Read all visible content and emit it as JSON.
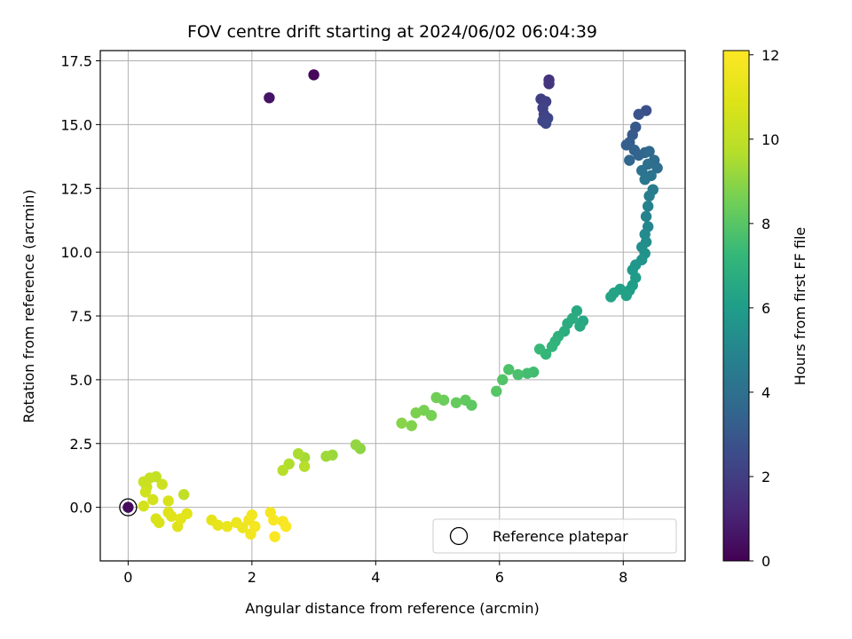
{
  "chart_data": {
    "type": "scatter",
    "title": "FOV centre drift starting at 2024/06/02 06:04:39",
    "xlabel": "Angular distance from reference (arcmin)",
    "ylabel": "Rotation from reference (arcmin)",
    "xlim": [
      -0.45,
      9.0
    ],
    "ylim": [
      -2.1,
      17.9
    ],
    "xticks": [
      0,
      2,
      4,
      6,
      8
    ],
    "xtick_labels": [
      "0",
      "2",
      "4",
      "6",
      "8"
    ],
    "yticks": [
      0.0,
      2.5,
      5.0,
      7.5,
      10.0,
      12.5,
      15.0,
      17.5
    ],
    "ytick_labels": [
      "0.0",
      "2.5",
      "5.0",
      "7.5",
      "10.0",
      "12.5",
      "15.0",
      "17.5"
    ],
    "grid": true,
    "colormap": "viridis",
    "colorbar": {
      "label": "Hours from first FF file",
      "range": [
        0,
        12.1
      ],
      "ticks": [
        0,
        2,
        4,
        6,
        8,
        10,
        12
      ],
      "tick_labels": [
        "0",
        "2",
        "4",
        "6",
        "8",
        "10",
        "12"
      ]
    },
    "legend": {
      "position": "lower-right",
      "entries": [
        "Reference platepar"
      ]
    },
    "reference_point": {
      "x": 0,
      "y": 0,
      "label": "Reference platepar"
    },
    "series": [
      {
        "points": [
          [
            0.0,
            0.0,
            0.3
          ],
          [
            3.0,
            16.95,
            0.2
          ],
          [
            2.28,
            16.05,
            0.6
          ],
          [
            6.8,
            16.75,
            1.6
          ],
          [
            6.8,
            16.6,
            1.7
          ],
          [
            6.67,
            16.0,
            2.0
          ],
          [
            6.75,
            15.9,
            2.1
          ],
          [
            6.7,
            15.65,
            2.2
          ],
          [
            6.72,
            15.4,
            2.2
          ],
          [
            6.7,
            15.15,
            2.3
          ],
          [
            6.78,
            15.25,
            2.3
          ],
          [
            6.75,
            15.05,
            2.4
          ],
          [
            8.37,
            15.55,
            2.7
          ],
          [
            8.25,
            15.4,
            2.8
          ],
          [
            8.2,
            14.9,
            3.0
          ],
          [
            8.15,
            14.6,
            3.1
          ],
          [
            8.1,
            14.3,
            3.2
          ],
          [
            8.05,
            14.2,
            3.3
          ],
          [
            8.18,
            14.0,
            3.4
          ],
          [
            8.25,
            13.8,
            3.5
          ],
          [
            8.1,
            13.6,
            3.6
          ],
          [
            8.35,
            13.9,
            3.6
          ],
          [
            8.42,
            13.95,
            3.7
          ],
          [
            8.5,
            13.6,
            3.8
          ],
          [
            8.55,
            13.3,
            3.9
          ],
          [
            8.4,
            13.45,
            4.0
          ],
          [
            8.3,
            13.2,
            4.1
          ],
          [
            8.45,
            13.0,
            4.2
          ],
          [
            8.35,
            12.85,
            4.3
          ],
          [
            8.48,
            12.45,
            4.5
          ],
          [
            8.42,
            12.2,
            4.6
          ],
          [
            8.4,
            11.8,
            4.8
          ],
          [
            8.37,
            11.4,
            4.9
          ],
          [
            8.4,
            11.0,
            5.0
          ],
          [
            8.35,
            10.7,
            5.2
          ],
          [
            8.37,
            10.4,
            5.3
          ],
          [
            8.3,
            10.2,
            5.4
          ],
          [
            8.35,
            9.95,
            5.5
          ],
          [
            8.3,
            9.7,
            5.6
          ],
          [
            8.2,
            9.5,
            5.7
          ],
          [
            8.15,
            9.3,
            5.8
          ],
          [
            8.2,
            9.0,
            5.9
          ],
          [
            8.15,
            8.7,
            6.0
          ],
          [
            8.1,
            8.5,
            6.1
          ],
          [
            8.05,
            8.3,
            6.2
          ],
          [
            7.95,
            8.55,
            6.2
          ],
          [
            7.85,
            8.4,
            6.3
          ],
          [
            7.8,
            8.25,
            6.3
          ],
          [
            7.35,
            7.3,
            6.5
          ],
          [
            7.3,
            7.1,
            6.6
          ],
          [
            7.25,
            7.7,
            6.6
          ],
          [
            7.18,
            7.4,
            6.7
          ],
          [
            7.1,
            7.2,
            6.7
          ],
          [
            7.05,
            6.9,
            6.8
          ],
          [
            6.95,
            6.7,
            6.9
          ],
          [
            6.9,
            6.5,
            7.0
          ],
          [
            6.85,
            6.3,
            7.1
          ],
          [
            6.75,
            6.0,
            7.2
          ],
          [
            6.65,
            6.2,
            7.3
          ],
          [
            6.55,
            5.3,
            7.5
          ],
          [
            6.45,
            5.25,
            7.6
          ],
          [
            6.3,
            5.2,
            7.7
          ],
          [
            6.15,
            5.4,
            7.8
          ],
          [
            6.05,
            5.0,
            7.9
          ],
          [
            5.95,
            4.55,
            8.0
          ],
          [
            5.55,
            4.0,
            8.1
          ],
          [
            5.45,
            4.2,
            8.2
          ],
          [
            5.3,
            4.1,
            8.3
          ],
          [
            5.1,
            4.2,
            8.4
          ],
          [
            4.98,
            4.3,
            8.5
          ],
          [
            4.9,
            3.6,
            8.6
          ],
          [
            4.78,
            3.8,
            8.6
          ],
          [
            4.65,
            3.7,
            8.7
          ],
          [
            4.58,
            3.2,
            8.8
          ],
          [
            4.42,
            3.3,
            8.9
          ],
          [
            3.75,
            2.3,
            9.0
          ],
          [
            3.68,
            2.45,
            9.1
          ],
          [
            3.3,
            2.05,
            9.2
          ],
          [
            3.2,
            2.0,
            9.3
          ],
          [
            2.85,
            1.95,
            9.4
          ],
          [
            2.75,
            2.1,
            9.5
          ],
          [
            2.6,
            1.7,
            9.6
          ],
          [
            2.5,
            1.45,
            9.7
          ],
          [
            2.85,
            1.6,
            9.7
          ],
          [
            0.9,
            0.5,
            10.0
          ],
          [
            0.45,
            1.2,
            10.1
          ],
          [
            0.35,
            1.15,
            10.2
          ],
          [
            0.25,
            1.0,
            10.3
          ],
          [
            0.3,
            0.8,
            10.3
          ],
          [
            0.55,
            0.9,
            10.4
          ],
          [
            0.28,
            0.6,
            10.5
          ],
          [
            0.4,
            0.3,
            10.6
          ],
          [
            0.25,
            0.05,
            10.6
          ],
          [
            0.65,
            0.25,
            10.7
          ],
          [
            0.45,
            -0.45,
            10.8
          ],
          [
            0.5,
            -0.6,
            10.8
          ],
          [
            0.65,
            -0.2,
            10.9
          ],
          [
            0.7,
            -0.35,
            11.0
          ],
          [
            0.8,
            -0.75,
            11.0
          ],
          [
            0.95,
            -0.25,
            11.1
          ],
          [
            0.85,
            -0.45,
            11.1
          ],
          [
            1.35,
            -0.5,
            11.2
          ],
          [
            1.45,
            -0.7,
            11.3
          ],
          [
            1.6,
            -0.75,
            11.4
          ],
          [
            1.75,
            -0.6,
            11.5
          ],
          [
            1.85,
            -0.8,
            11.5
          ],
          [
            1.95,
            -0.5,
            11.6
          ],
          [
            2.0,
            -0.3,
            11.7
          ],
          [
            1.98,
            -1.05,
            11.7
          ],
          [
            2.05,
            -0.75,
            11.8
          ],
          [
            2.3,
            -0.2,
            11.8
          ],
          [
            2.35,
            -0.5,
            11.9
          ],
          [
            2.5,
            -0.55,
            11.9
          ],
          [
            2.55,
            -0.75,
            12.0
          ],
          [
            2.37,
            -1.15,
            12.0
          ]
        ]
      }
    ]
  }
}
